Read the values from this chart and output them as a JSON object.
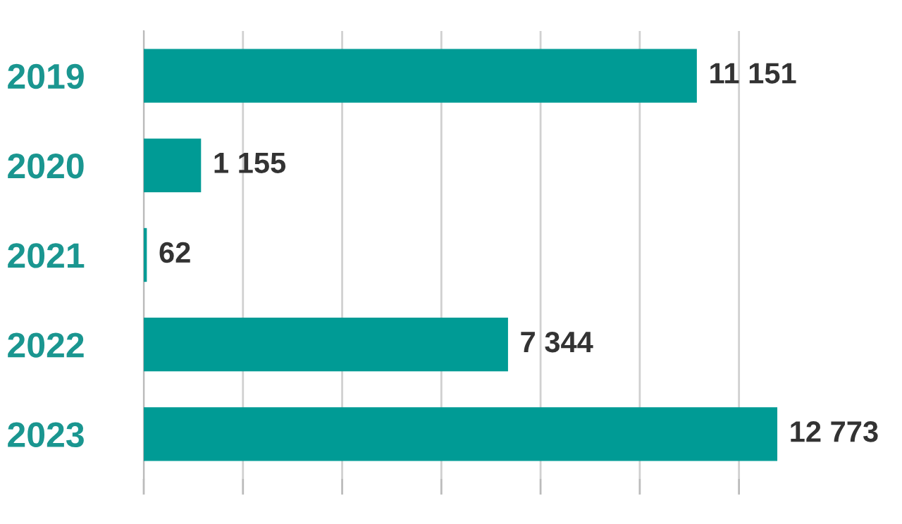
{
  "chart_data": {
    "type": "bar",
    "orientation": "horizontal",
    "categories": [
      "2019",
      "2020",
      "2021",
      "2022",
      "2023"
    ],
    "values": [
      11151,
      1155,
      62,
      7344,
      12773
    ],
    "value_labels": [
      "11 151",
      "1 155",
      "62",
      "7 344",
      "12 773"
    ],
    "color": "#009b95",
    "xticks": [
      {
        "value": 0,
        "label": null
      },
      {
        "value": 2000,
        "label": null
      },
      {
        "value": 4000,
        "label": null
      },
      {
        "value": 6000,
        "label": null
      },
      {
        "value": 8000,
        "label": null
      },
      {
        "value": 10000,
        "label": null
      },
      {
        "value": 12000,
        "label": null
      }
    ],
    "grid": "x",
    "tick_labels": "y"
  }
}
